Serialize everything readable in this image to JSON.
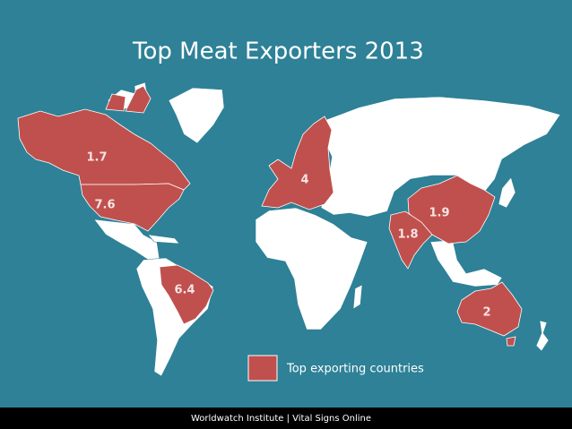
{
  "title": "Top Meat Exporters 2013",
  "regions": [
    {
      "value": 1.7,
      "color": "#c0504d"
    },
    {
      "value": 7.6,
      "color": "#c0504d"
    },
    {
      "value": 6.4,
      "color": "#c0504d"
    },
    {
      "value": 4,
      "color": "#c0504d"
    },
    {
      "value": 1.9,
      "color": "#c0504d"
    },
    {
      "value": 1.8,
      "color": "#c0504d"
    },
    {
      "value": 2,
      "color": "#c0504d"
    }
  ],
  "legend": {
    "label": "Top exporting countries",
    "color": "#c0504d"
  },
  "footer": "Worldwatch Institute | Vital Signs Online"
}
